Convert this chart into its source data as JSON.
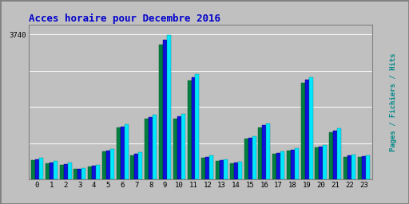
{
  "title": "Acces horaire pour Decembre 2016",
  "title_color": "#0000cc",
  "title_fontsize": 9,
  "hours": [
    0,
    1,
    2,
    3,
    4,
    5,
    6,
    7,
    8,
    9,
    10,
    11,
    12,
    13,
    14,
    15,
    16,
    17,
    18,
    19,
    20,
    21,
    22,
    23
  ],
  "pages": [
    500,
    420,
    380,
    270,
    340,
    720,
    1340,
    630,
    1560,
    3480,
    1560,
    2560,
    570,
    480,
    410,
    1050,
    1350,
    670,
    740,
    2500,
    820,
    1220,
    590,
    580
  ],
  "fichiers": [
    520,
    440,
    400,
    280,
    350,
    740,
    1370,
    655,
    1600,
    3600,
    1620,
    2640,
    590,
    500,
    430,
    1080,
    1400,
    690,
    770,
    2570,
    855,
    1270,
    615,
    600
  ],
  "hits": [
    560,
    480,
    430,
    300,
    380,
    780,
    1430,
    700,
    1670,
    3720,
    1700,
    2720,
    620,
    530,
    450,
    1120,
    1450,
    730,
    810,
    2640,
    900,
    1330,
    650,
    630
  ],
  "color_pages": "#008040",
  "color_fichiers": "#1010dd",
  "color_hits": "#00e8ff",
  "background_color": "#c0c0c0",
  "border_color": "#808080",
  "ymax": 4000,
  "ytick_val": 3740,
  "bar_width": 0.28,
  "ylabel_right": "Pages / Fichiers / Hits",
  "ylabel_color_pages": "#008040",
  "ylabel_color_fichiers": "#1010dd",
  "ylabel_color_hits": "#00cccc"
}
